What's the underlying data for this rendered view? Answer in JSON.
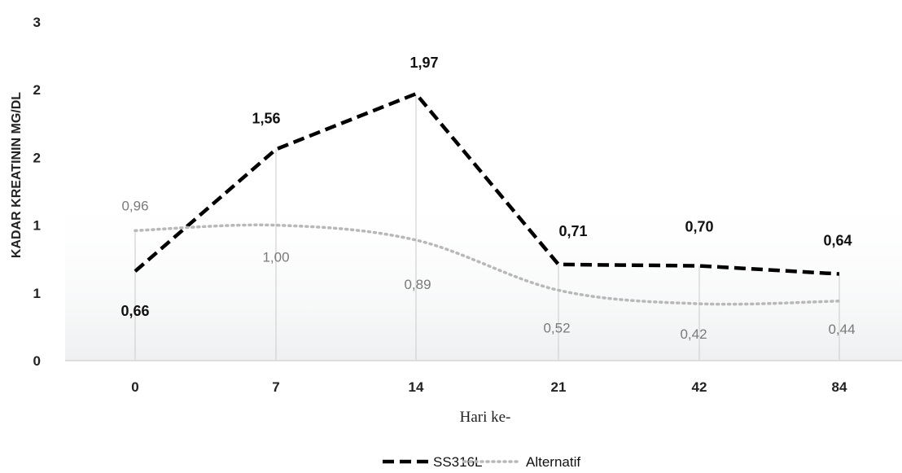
{
  "chart_data": {
    "type": "line",
    "categories": [
      "0",
      "7",
      "14",
      "21",
      "42",
      "84"
    ],
    "xlabel": "Hari ke-",
    "ylabel": "KADAR KREATININ MG/DL",
    "y_tick_labels": [
      "0",
      "1",
      "1",
      "2",
      "2",
      "3"
    ],
    "ylim": [
      0,
      2.5
    ],
    "grid": false,
    "legend_position": "bottom",
    "series": [
      {
        "name": "SS316L",
        "values": [
          0.66,
          1.56,
          1.97,
          0.71,
          0.7,
          0.64
        ],
        "labels": [
          "0,66",
          "1,56",
          "1,97",
          "0,71",
          "0,70",
          "0,64"
        ],
        "color": "#000000",
        "style": "dashed"
      },
      {
        "name": "Alternatif",
        "values": [
          0.96,
          1.0,
          0.89,
          0.52,
          0.42,
          0.44
        ],
        "labels": [
          "0,96",
          "1,00",
          "0,89",
          "0,52",
          "0,42",
          "0,44"
        ],
        "color": "#b8b8b8",
        "style": "dotted"
      }
    ]
  }
}
